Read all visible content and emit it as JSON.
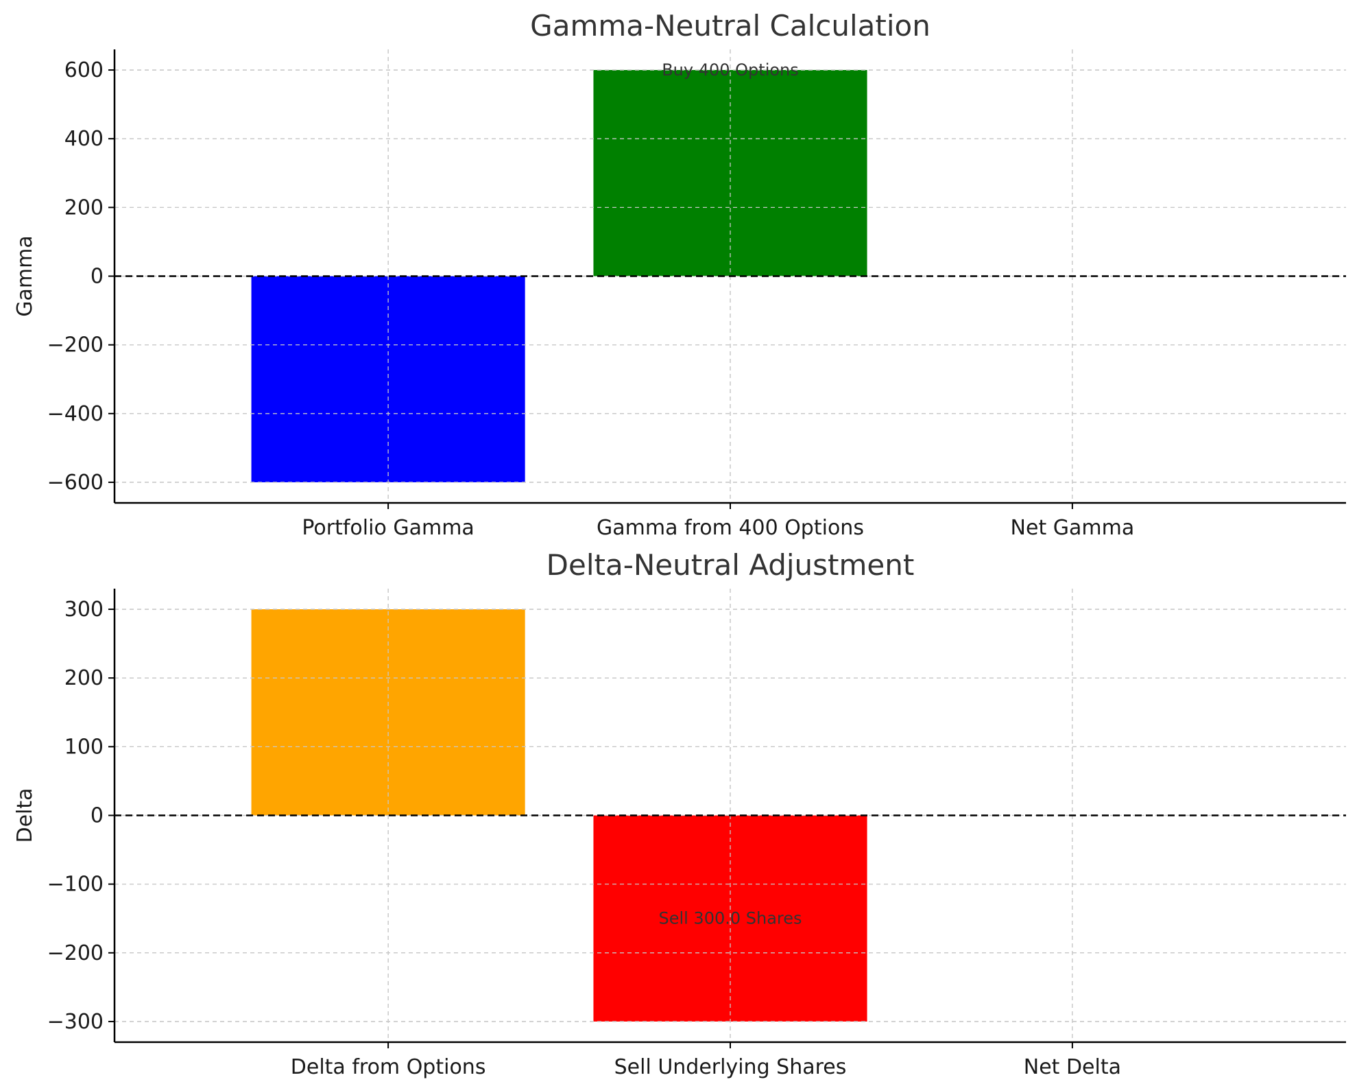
{
  "chart_data": [
    {
      "type": "bar",
      "title": "Gamma-Neutral Calculation",
      "xlabel": "",
      "ylabel": "Gamma",
      "categories": [
        "Portfolio Gamma",
        "Gamma from 400 Options",
        "Net Gamma"
      ],
      "values": [
        -600,
        600,
        0
      ],
      "colors": [
        "#0000ff",
        "#008000",
        "#808080"
      ],
      "ylim": [
        -660,
        660
      ],
      "yticks": [
        -600,
        -400,
        -200,
        0,
        200,
        400,
        600
      ],
      "grid": true,
      "zero_line": true,
      "annotations": [
        {
          "text": "Buy 400 Options",
          "x": "Gamma from 400 Options",
          "y": 600
        }
      ]
    },
    {
      "type": "bar",
      "title": "Delta-Neutral Adjustment",
      "xlabel": "",
      "ylabel": "Delta",
      "categories": [
        "Delta from Options",
        "Sell Underlying Shares",
        "Net Delta"
      ],
      "values": [
        300,
        -300,
        0
      ],
      "colors": [
        "#ffa500",
        "#ff0000",
        "#808080"
      ],
      "ylim": [
        -330,
        330
      ],
      "yticks": [
        -300,
        -200,
        -100,
        0,
        100,
        200,
        300
      ],
      "grid": true,
      "zero_line": true,
      "annotations": [
        {
          "text": "Sell 300.0 Shares",
          "x": "Sell Underlying Shares",
          "y": -150
        }
      ]
    }
  ]
}
